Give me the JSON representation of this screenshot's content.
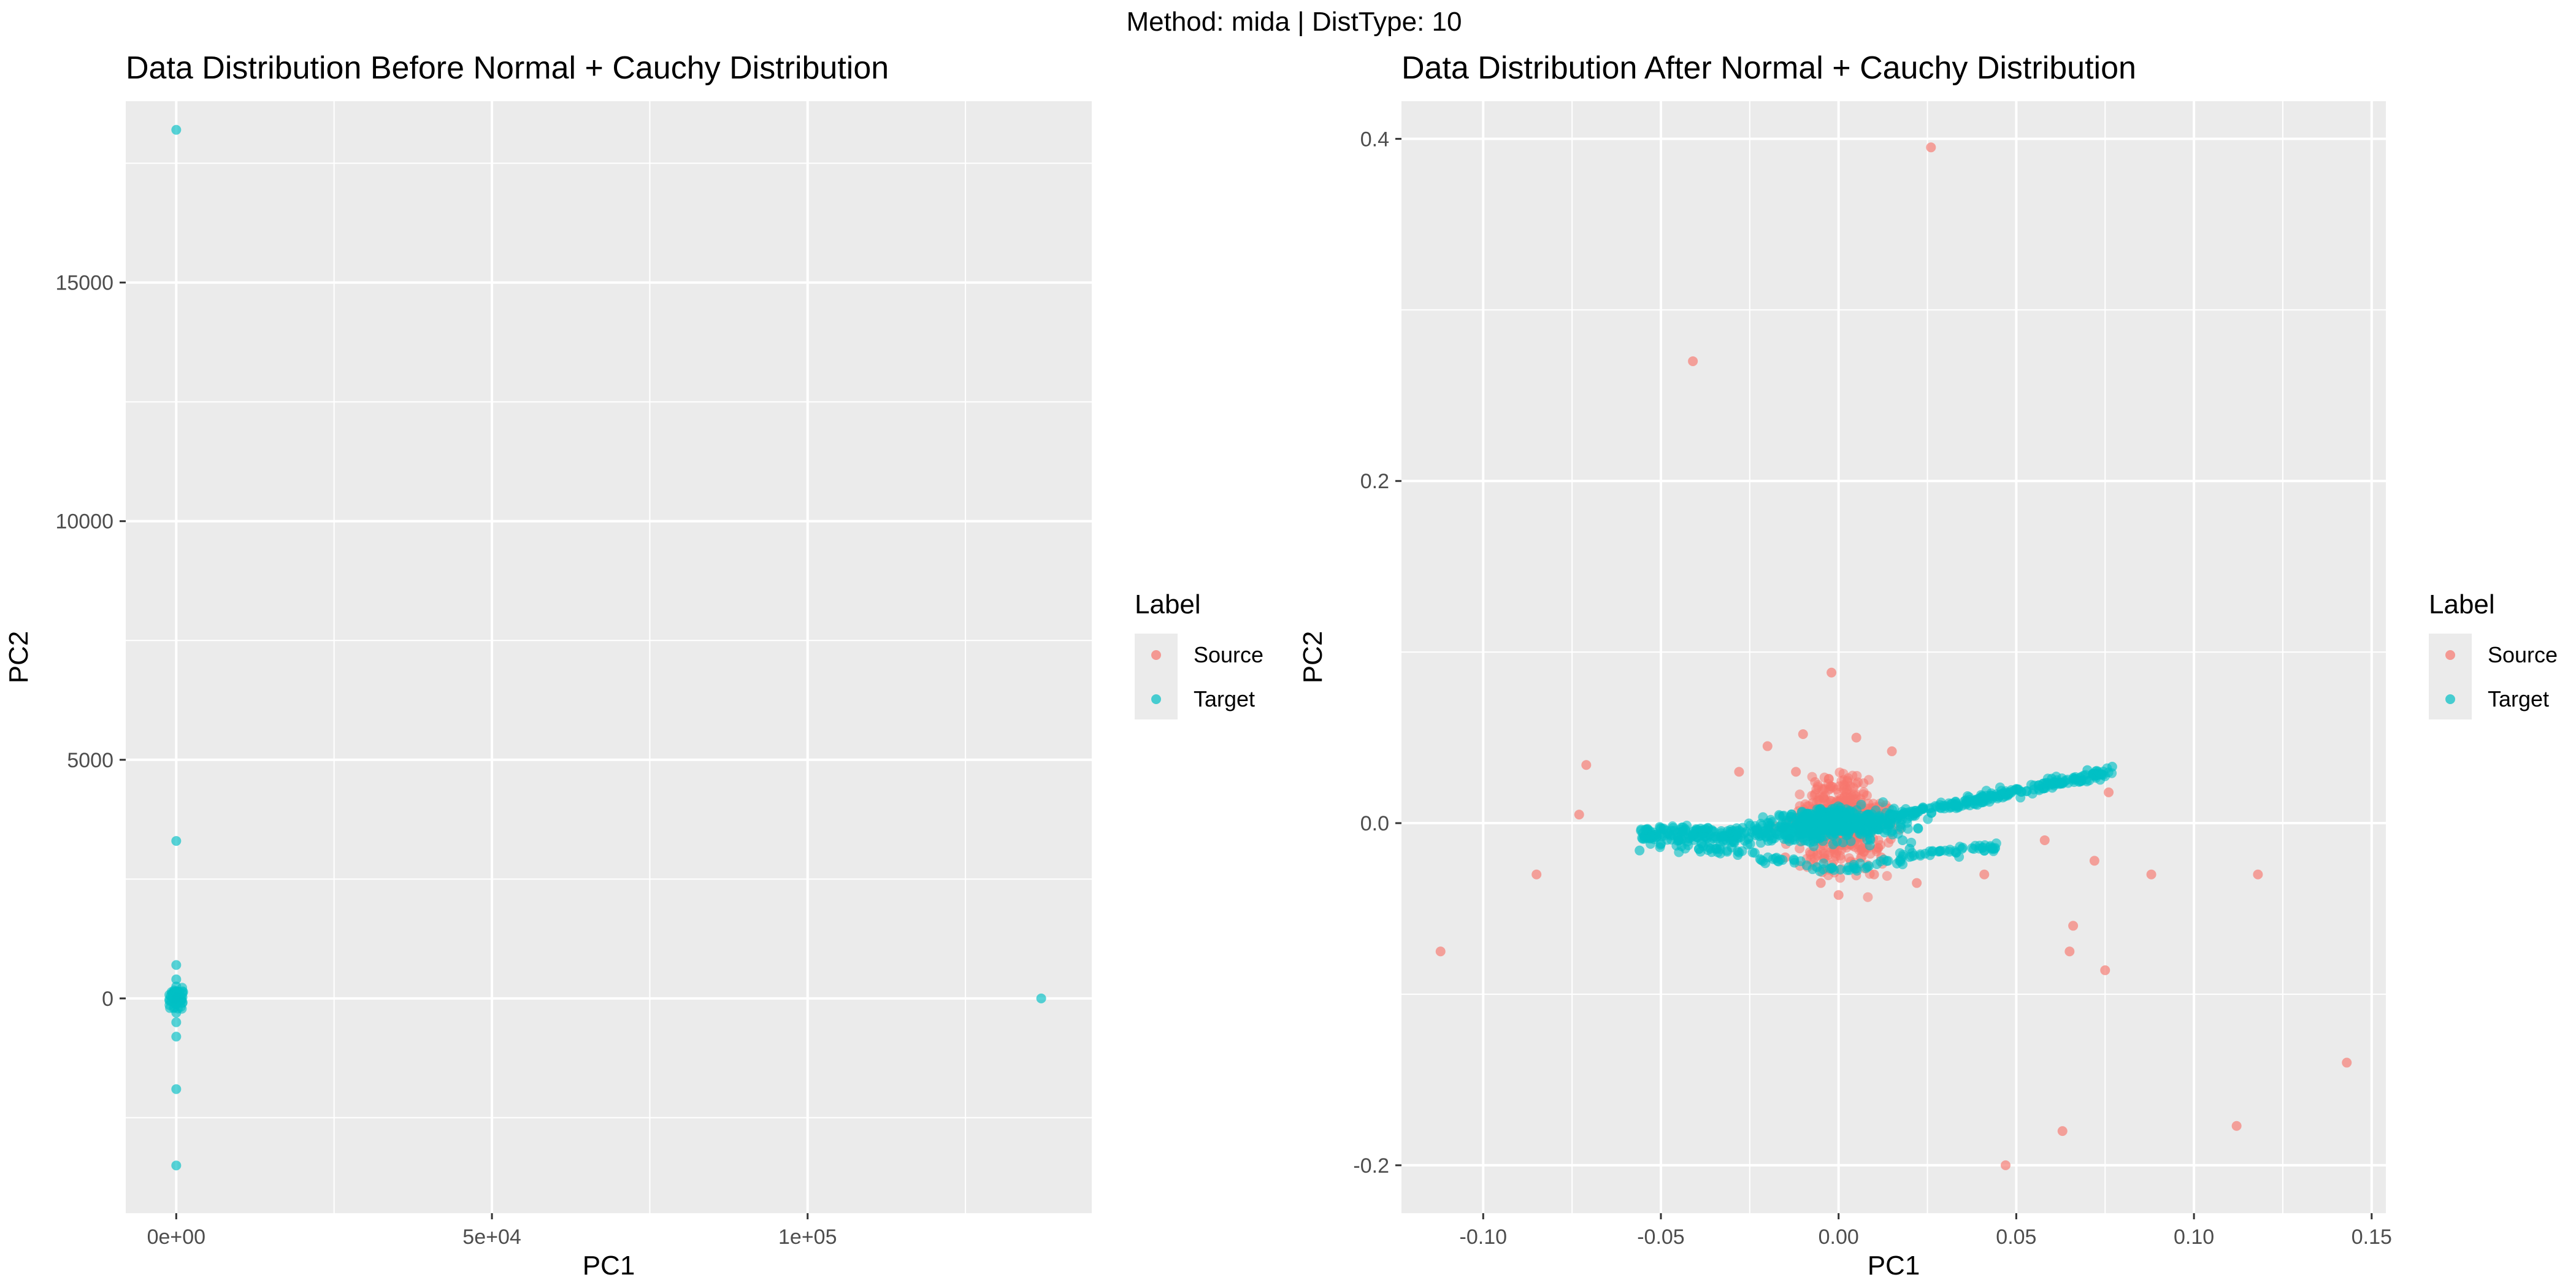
{
  "suptitle": "Method: mida | DistType: 10",
  "colors": {
    "panel_bg": "#EBEBEB",
    "grid": "#FFFFFF",
    "source": "#F8766D",
    "target": "#00BFC4",
    "text": "#000000",
    "tick_text": "#4D4D4D"
  },
  "chart_data": [
    {
      "type": "scatter",
      "title": "Data Distribution Before Normal + Cauchy Distribution",
      "xlabel": "PC1",
      "ylabel": "PC2",
      "xlim": [
        -8000,
        145000
      ],
      "ylim": [
        -4500,
        18800
      ],
      "xticks": [
        0,
        50000,
        100000
      ],
      "xtick_labels": [
        "0e+00",
        "5e+04",
        "1e+05"
      ],
      "yticks": [
        0,
        5000,
        10000,
        15000
      ],
      "ytick_labels": [
        "0",
        "5000",
        "10000",
        "15000"
      ],
      "grid": true,
      "legend": {
        "title": "Label",
        "entries": [
          "Source",
          "Target"
        ],
        "placement": "right"
      },
      "series": [
        {
          "name": "Source",
          "points": []
        },
        {
          "name": "Target",
          "points": [
            [
              0,
              18200
            ],
            [
              0,
              3300
            ],
            [
              0,
              700
            ],
            [
              0,
              400
            ],
            [
              0,
              250
            ],
            [
              0,
              150
            ],
            [
              0,
              80
            ],
            [
              0,
              30
            ],
            [
              0,
              0
            ],
            [
              -500,
              0
            ],
            [
              500,
              0
            ],
            [
              -300,
              -50
            ],
            [
              300,
              50
            ],
            [
              -200,
              -30
            ],
            [
              800,
              -40
            ],
            [
              0,
              -100
            ],
            [
              0,
              -300
            ],
            [
              0,
              -500
            ],
            [
              0,
              -800
            ],
            [
              0,
              -1900
            ],
            [
              0,
              -3500
            ],
            [
              137000,
              0
            ]
          ]
        }
      ]
    },
    {
      "type": "scatter",
      "title": "Data Distribution After Normal + Cauchy Distribution",
      "xlabel": "PC1",
      "ylabel": "PC2",
      "xlim": [
        -0.123,
        0.154
      ],
      "ylim": [
        -0.228,
        0.422
      ],
      "xticks": [
        -0.1,
        -0.05,
        0.0,
        0.05,
        0.1,
        0.15
      ],
      "xtick_labels": [
        "-0.10",
        "-0.05",
        "0.00",
        "0.05",
        "0.10",
        "0.15"
      ],
      "yticks": [
        -0.2,
        0.0,
        0.2,
        0.4
      ],
      "ytick_labels": [
        "-0.2",
        "0.0",
        "0.2",
        "0.4"
      ],
      "grid": true,
      "legend": {
        "title": "Label",
        "entries": [
          "Source",
          "Target"
        ],
        "placement": "right"
      },
      "series": [
        {
          "name": "Source",
          "points": [
            [
              0.026,
              0.395
            ],
            [
              -0.041,
              0.27
            ],
            [
              -0.002,
              0.088
            ],
            [
              -0.112,
              -0.075
            ],
            [
              -0.085,
              -0.03
            ],
            [
              -0.071,
              0.034
            ],
            [
              -0.073,
              0.005
            ],
            [
              -0.028,
              0.03
            ],
            [
              0.041,
              -0.03
            ],
            [
              0.058,
              -0.01
            ],
            [
              0.072,
              -0.022
            ],
            [
              0.076,
              0.018
            ],
            [
              0.088,
              -0.03
            ],
            [
              0.118,
              -0.03
            ],
            [
              0.066,
              -0.06
            ],
            [
              0.065,
              -0.075
            ],
            [
              0.075,
              -0.086
            ],
            [
              0.047,
              -0.2
            ],
            [
              0.063,
              -0.18
            ],
            [
              0.112,
              -0.177
            ],
            [
              0.143,
              -0.14
            ],
            [
              0.022,
              -0.035
            ],
            [
              -0.02,
              0.045
            ],
            [
              0.005,
              0.05
            ],
            [
              -0.01,
              0.052
            ],
            [
              0.015,
              0.042
            ],
            [
              -0.015,
              -0.02
            ],
            [
              0.0,
              -0.042
            ],
            [
              0.01,
              -0.03
            ],
            [
              -0.005,
              -0.035
            ],
            [
              0.012,
              -0.02
            ],
            [
              -0.012,
              0.03
            ]
          ]
        },
        {
          "name": "Target",
          "points": [
            [
              0.077,
              0.033
            ],
            [
              0.07,
              0.031
            ],
            [
              0.06,
              0.026
            ],
            [
              0.05,
              0.02
            ],
            [
              0.04,
              0.015
            ],
            [
              0.03,
              0.01
            ],
            [
              -0.056,
              -0.016
            ],
            [
              -0.05,
              -0.012
            ],
            [
              -0.045,
              -0.01
            ],
            [
              -0.04,
              -0.008
            ],
            [
              -0.03,
              -0.006
            ],
            [
              0.02,
              -0.015
            ],
            [
              0.018,
              -0.01
            ]
          ]
        }
      ]
    }
  ]
}
